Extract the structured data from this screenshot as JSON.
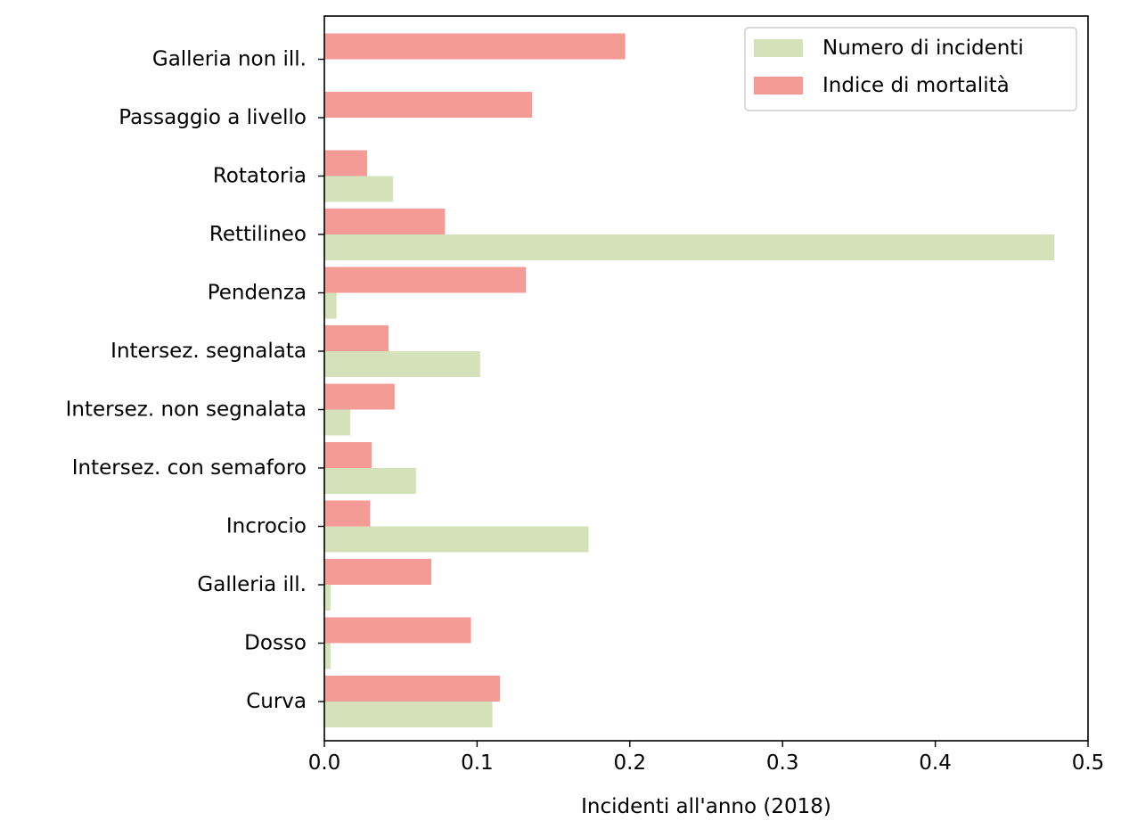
{
  "chart_data": {
    "type": "bar",
    "orientation": "horizontal",
    "title": "",
    "xlabel": "Incidenti all'anno (2018)",
    "ylabel": "",
    "xlim": [
      0,
      0.5
    ],
    "xticks": [
      0.0,
      0.1,
      0.2,
      0.3,
      0.4,
      0.5
    ],
    "xtick_labels": [
      "0.0",
      "0.1",
      "0.2",
      "0.3",
      "0.4",
      "0.5"
    ],
    "grid": false,
    "legend_position": "top-right",
    "categories": [
      "Curva",
      "Dosso",
      "Galleria ill.",
      "Incrocio",
      "Intersez. con semaforo",
      "Intersez. non segnalata",
      "Intersez. segnalata",
      "Pendenza",
      "Rettilineo",
      "Rotatoria",
      "Passaggio a livello",
      "Galleria non ill."
    ],
    "series": [
      {
        "name": "Numero di incidenti",
        "color": "#d5e1b9",
        "values": [
          0.11,
          0.004,
          0.004,
          0.173,
          0.06,
          0.017,
          0.102,
          0.008,
          0.478,
          0.045,
          0.0,
          0.0
        ]
      },
      {
        "name": "Indice di mortalità",
        "color": "#f49b96",
        "values": [
          0.115,
          0.096,
          0.07,
          0.03,
          0.031,
          0.046,
          0.042,
          0.132,
          0.079,
          0.028,
          0.136,
          0.197
        ]
      }
    ]
  }
}
